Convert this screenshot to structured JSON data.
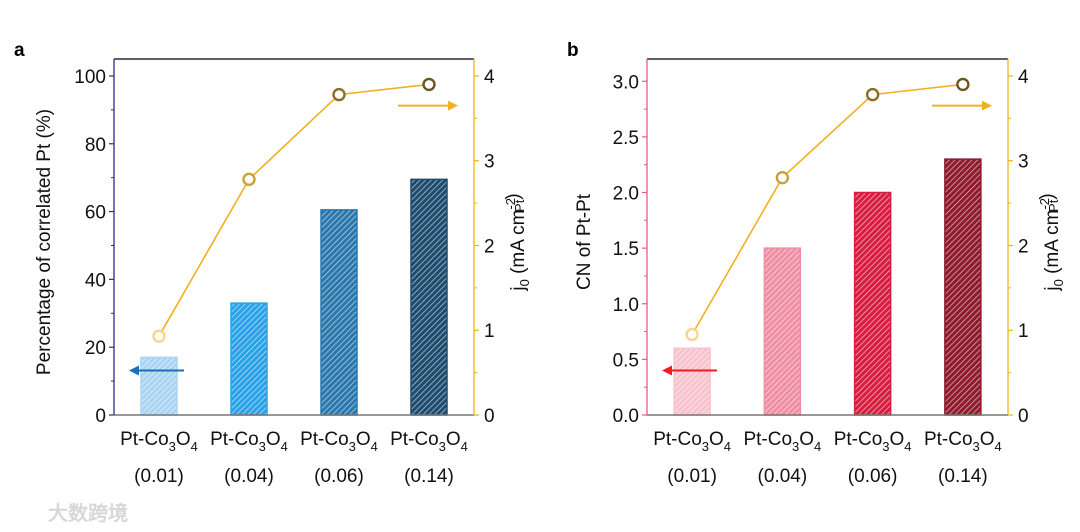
{
  "watermark": "大数跨境",
  "line_color": "#f0b020",
  "chart_data": [
    {
      "panel_label": "a",
      "type": "bar+line",
      "categories": [
        {
          "name": "Pt-Co",
          "sub1": "3",
          "mid": "O",
          "sub2": "4",
          "value_label": "(0.01)"
        },
        {
          "name": "Pt-Co",
          "sub1": "3",
          "mid": "O",
          "sub2": "4",
          "value_label": "(0.04)"
        },
        {
          "name": "Pt-Co",
          "sub1": "3",
          "mid": "O",
          "sub2": "4",
          "value_label": "(0.06)"
        },
        {
          "name": "Pt-Co",
          "sub1": "3",
          "mid": "O",
          "sub2": "4",
          "value_label": "(0.14)"
        }
      ],
      "bars": {
        "values": [
          17,
          33,
          60.5,
          69.5
        ],
        "colors": [
          "#a9d5f2",
          "#2ba2e8",
          "#2b78ad",
          "#1f4c6e"
        ]
      },
      "line": {
        "values": [
          0.93,
          2.78,
          3.78,
          3.9
        ],
        "marker_colors": [
          "#f5d68c",
          "#c9a23c",
          "#8c6e25",
          "#6b5420"
        ]
      },
      "ylabel": "Percentage of correlated Pt (%)",
      "ylim": [
        0,
        105
      ],
      "yticks": [
        "0",
        "20",
        "40",
        "60",
        "80",
        "100"
      ],
      "ytick_values": [
        0,
        20,
        40,
        60,
        80,
        100
      ],
      "y2label": {
        "main": "j",
        "sub": "0",
        "rest": " (mA cm",
        "sup": "-2",
        "sub2": "Pt",
        "end": ")"
      },
      "y2lim": [
        0,
        4.2
      ],
      "y2ticks": [
        "0",
        "1",
        "2",
        "3",
        "4"
      ],
      "y2tick_values": [
        0,
        1,
        2,
        3,
        4
      ],
      "left_axis_color": "#2b2b8c",
      "left_arrow_color": "#1a6fb8"
    },
    {
      "panel_label": "b",
      "type": "bar+line",
      "categories": [
        {
          "name": "Pt-Co",
          "sub1": "3",
          "mid": "O",
          "sub2": "4",
          "value_label": "(0.01)"
        },
        {
          "name": "Pt-Co",
          "sub1": "3",
          "mid": "O",
          "sub2": "4",
          "value_label": "(0.04)"
        },
        {
          "name": "Pt-Co",
          "sub1": "3",
          "mid": "O",
          "sub2": "4",
          "value_label": "(0.06)"
        },
        {
          "name": "Pt-Co",
          "sub1": "3",
          "mid": "O",
          "sub2": "4",
          "value_label": "(0.14)"
        }
      ],
      "bars": {
        "values": [
          0.6,
          1.5,
          2.0,
          2.3
        ],
        "colors": [
          "#f8c3ce",
          "#f08fa3",
          "#d81e40",
          "#8f1b2e"
        ]
      },
      "line": {
        "values": [
          0.95,
          2.8,
          3.78,
          3.9
        ],
        "marker_colors": [
          "#f5d68c",
          "#c9a23c",
          "#8c6e25",
          "#6b5420"
        ]
      },
      "ylabel": "CN of Pt-Pt",
      "ylim": [
        0,
        3.2
      ],
      "yticks": [
        "0.0",
        "0.5",
        "1.0",
        "1.5",
        "2.0",
        "2.5",
        "3.0"
      ],
      "ytick_values": [
        0,
        0.5,
        1.0,
        1.5,
        2.0,
        2.5,
        3.0
      ],
      "y2label": {
        "main": "j",
        "sub": "0",
        "rest": " (mA cm",
        "sup": "-2",
        "sub2": "Pt",
        "end": ")"
      },
      "y2lim": [
        0,
        4.2
      ],
      "y2ticks": [
        "0",
        "1",
        "2",
        "3",
        "4"
      ],
      "y2tick_values": [
        0,
        1,
        2,
        3,
        4
      ],
      "left_axis_color": "#e0607e",
      "left_arrow_color": "#f01c1c"
    }
  ]
}
